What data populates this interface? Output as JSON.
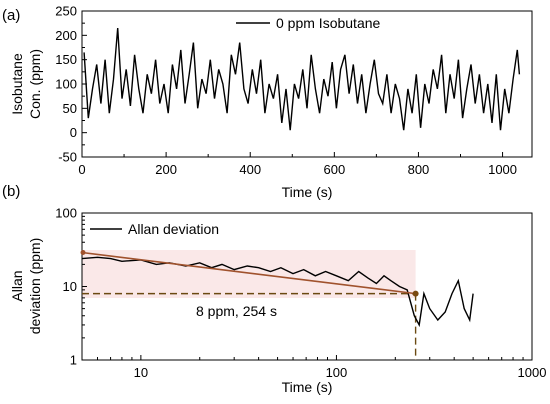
{
  "colors": {
    "line": "#000000",
    "fit": "#a0522d",
    "marker": "#7a4a10",
    "band": "#f6d6d6"
  },
  "chart_data": [
    {
      "panel": "(a)",
      "type": "line",
      "legend": "0 ppm Isobutane",
      "legend_position": "top-center",
      "xlabel": "Time (s)",
      "ylabel_lines": [
        "Isobutane",
        "Con. (ppm)"
      ],
      "xlim": [
        0,
        1070
      ],
      "ylim": [
        -50,
        250
      ],
      "xticks": [
        0,
        200,
        400,
        600,
        800,
        1000
      ],
      "yticks": [
        -50,
        0,
        50,
        100,
        150,
        200,
        250
      ],
      "series": [
        {
          "x": [
            5,
            15,
            25,
            35,
            45,
            55,
            65,
            75,
            85,
            95,
            105,
            115,
            125,
            135,
            145,
            155,
            165,
            175,
            185,
            195,
            205,
            215,
            225,
            235,
            245,
            255,
            265,
            275,
            285,
            295,
            305,
            315,
            325,
            335,
            345,
            355,
            365,
            375,
            385,
            395,
            405,
            415,
            425,
            435,
            445,
            455,
            465,
            475,
            485,
            495,
            505,
            515,
            525,
            535,
            545,
            555,
            565,
            575,
            585,
            595,
            605,
            615,
            625,
            635,
            645,
            655,
            665,
            675,
            685,
            695,
            705,
            715,
            725,
            735,
            745,
            755,
            765,
            775,
            785,
            795,
            805,
            815,
            825,
            835,
            845,
            855,
            865,
            875,
            885,
            895,
            905,
            915,
            925,
            935,
            945,
            955,
            965,
            975,
            985,
            995,
            1005,
            1015,
            1025,
            1035,
            1040
          ],
          "y": [
            165,
            30,
            90,
            140,
            60,
            150,
            40,
            110,
            215,
            70,
            130,
            55,
            160,
            90,
            40,
            120,
            80,
            150,
            60,
            100,
            40,
            140,
            90,
            170,
            60,
            120,
            185,
            50,
            110,
            80,
            150,
            70,
            130,
            100,
            40,
            160,
            120,
            185,
            90,
            60,
            130,
            80,
            150,
            40,
            100,
            70,
            120,
            20,
            90,
            5,
            100,
            70,
            130,
            50,
            160,
            90,
            40,
            110,
            75,
            145,
            50,
            130,
            160,
            80,
            140,
            60,
            120,
            40,
            100,
            150,
            80,
            60,
            120,
            40,
            100,
            70,
            5,
            90,
            40,
            120,
            10,
            100,
            60,
            130,
            90,
            160,
            40,
            120,
            70,
            150,
            30,
            90,
            140,
            60,
            120,
            40,
            100,
            20,
            120,
            5,
            90,
            40,
            110,
            170,
            120
          ]
        }
      ]
    },
    {
      "panel": "(b)",
      "type": "line",
      "xscale": "log",
      "yscale": "log",
      "legend": "Allan deviation",
      "legend_position": "top-left",
      "xlabel": "Time (s)",
      "ylabel_lines": [
        "Allan",
        "deviation (ppm)"
      ],
      "xlim": [
        5,
        1000
      ],
      "ylim": [
        1,
        100
      ],
      "xticks": [
        10,
        100,
        1000
      ],
      "yticks": [
        1,
        10,
        100
      ],
      "annotation": "8 ppm, 254 s",
      "marked_point": {
        "x": 254,
        "y": 8
      },
      "fit_line": {
        "x": [
          5,
          254
        ],
        "y": [
          29,
          8
        ]
      },
      "series": [
        {
          "name": "Allan deviation",
          "x": [
            5,
            6,
            7,
            8,
            10,
            12,
            14,
            17,
            20,
            23,
            26,
            30,
            35,
            40,
            46,
            52,
            60,
            68,
            78,
            88,
            100,
            115,
            130,
            145,
            160,
            175,
            190,
            210,
            230,
            250,
            265,
            280,
            300,
            330,
            360,
            390,
            420,
            450,
            480,
            500
          ],
          "y": [
            24,
            25,
            24,
            22,
            23,
            20,
            21,
            19,
            21,
            18,
            20,
            17,
            19,
            18,
            16,
            18,
            15,
            17,
            14,
            16,
            14,
            12,
            16,
            13,
            11,
            14,
            12,
            10,
            9,
            4,
            3,
            8,
            5,
            3.5,
            4.5,
            8,
            12,
            5,
            3.5,
            8
          ]
        }
      ]
    }
  ]
}
